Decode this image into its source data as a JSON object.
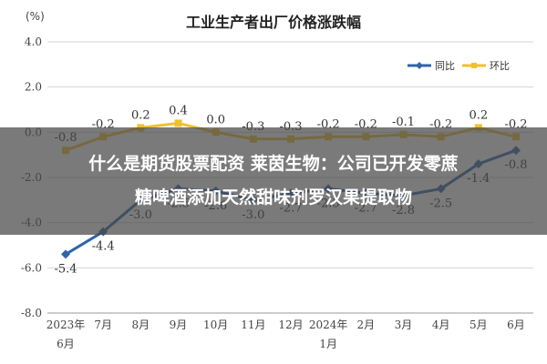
{
  "chart_data": {
    "type": "line",
    "title": "工业生产者出厂价格涨跌幅",
    "unit": "(%)",
    "categories": [
      "2023年6月",
      "7月",
      "8月",
      "9月",
      "10月",
      "11月",
      "12月",
      "2024年1月",
      "2月",
      "3月",
      "4月",
      "5月",
      "6月"
    ],
    "category_lines": [
      [
        "2023年",
        "6月"
      ],
      [
        "7月",
        ""
      ],
      [
        "8月",
        ""
      ],
      [
        "9月",
        ""
      ],
      [
        "10月",
        ""
      ],
      [
        "11月",
        ""
      ],
      [
        "12月",
        ""
      ],
      [
        "2024年",
        "1月"
      ],
      [
        "2月",
        ""
      ],
      [
        "3月",
        ""
      ],
      [
        "4月",
        ""
      ],
      [
        "5月",
        ""
      ],
      [
        "6月",
        ""
      ]
    ],
    "ylim": [
      -8.0,
      4.0
    ],
    "yticks": [
      "4.0",
      "2.0",
      "0.0",
      "-2.0",
      "-4.0",
      "-6.0",
      "-8.0"
    ],
    "ytick_values": [
      4,
      2,
      0,
      -2,
      -4,
      -6,
      -8
    ],
    "grid": true,
    "legend_position": "top-right",
    "series": [
      {
        "name": "同比",
        "color": "#2f64a8",
        "values": [
          -5.4,
          -4.4,
          -3.0,
          -2.5,
          -2.6,
          -3.0,
          -2.7,
          -2.5,
          -2.7,
          -2.8,
          -2.5,
          -1.4,
          -0.8
        ],
        "labels": [
          "-5.4",
          "-4.4",
          "-3.0",
          "-2.5",
          "-2.6",
          "-3.0",
          "-2.7",
          "-2.5",
          "-2.7",
          "-2.8",
          "-2.5",
          "-1.4",
          "-0.8"
        ]
      },
      {
        "name": "环比",
        "color": "#f0c030",
        "values": [
          -0.8,
          -0.2,
          0.2,
          0.4,
          0.0,
          -0.3,
          -0.3,
          -0.2,
          -0.2,
          -0.1,
          -0.2,
          0.2,
          -0.2
        ],
        "labels": [
          "-0.8",
          "-0.2",
          "0.2",
          "0.4",
          "0.0",
          "-0.3",
          "-0.3",
          "-0.2",
          "-0.2",
          "-0.1",
          "-0.2",
          "0.2",
          "-0.2"
        ]
      }
    ]
  },
  "banner": {
    "line1": "什么是期货股票配资 莱茵生物：公司已开发零蔗",
    "line2": "糖啤酒添加天然甜味剂罗汉果提取物"
  }
}
